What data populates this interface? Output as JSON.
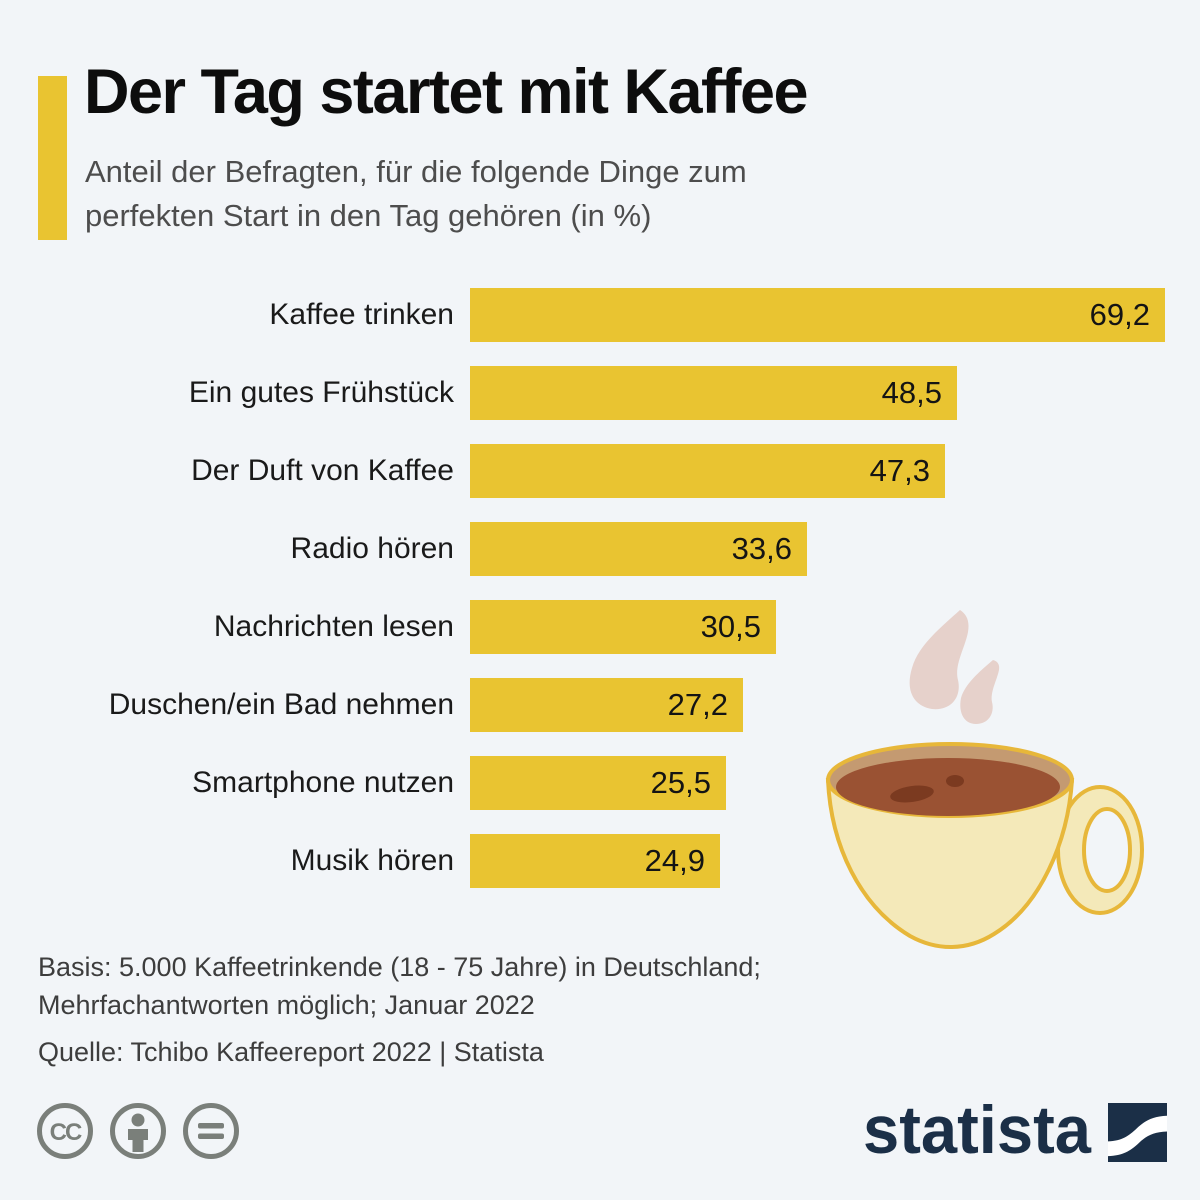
{
  "header": {
    "title": "Der Tag startet mit Kaffee",
    "subtitle_lines": [
      "Anteil der Befragten, für die folgende Dinge zum",
      "perfekten Start in den Tag gehören (in %)"
    ]
  },
  "chart_data": {
    "type": "bar",
    "orientation": "horizontal",
    "title": "Der Tag startet mit Kaffee",
    "subtitle": "Anteil der Befragten, für die folgende Dinge zum perfekten Start in den Tag gehören (in %)",
    "unit": "%",
    "grid": false,
    "legend": false,
    "xlim": [
      0,
      69.2
    ],
    "categories": [
      "Kaffee trinken",
      "Ein gutes Frühstück",
      "Der Duft von Kaffee",
      "Radio hören",
      "Nachrichten lesen",
      "Duschen/ein Bad nehmen",
      "Smartphone nutzen",
      "Musik hören"
    ],
    "values": [
      69.2,
      48.5,
      47.3,
      33.6,
      30.5,
      27.2,
      25.5,
      24.9
    ],
    "value_labels": [
      "69,2",
      "48,5",
      "47,3",
      "33,6",
      "30,5",
      "27,2",
      "25,5",
      "24,9"
    ],
    "bar_color": "#e9c431"
  },
  "footer": {
    "lines": [
      "Basis: 5.000 Kaffeetrinkende (18 - 75 Jahre) in Deutschland;",
      "Mehrfachantworten möglich; Januar 2022"
    ],
    "source": "Quelle: Tchibo Kaffeereport 2022 | Statista"
  },
  "branding": {
    "logo_text": "statista",
    "cc_text": "CC",
    "license_icons": [
      "cc-icon",
      "attribution-icon",
      "no-derivatives-icon"
    ]
  },
  "colors": {
    "background": "#f2f5f8",
    "accent_yellow": "#e9c431",
    "title": "#0d0d0d",
    "subtitle": "#4d4d4d",
    "footer_text": "#3d3d3d",
    "statista_navy": "#1b2f47",
    "license_gray": "#7a7f7a",
    "cup_body": "#f4e9b9",
    "cup_outline": "#e7b73a",
    "cup_rim": "#c49a71",
    "coffee": "#9a5233",
    "coffee_dark": "#7b3a20",
    "steam": "#e6d1cb"
  }
}
